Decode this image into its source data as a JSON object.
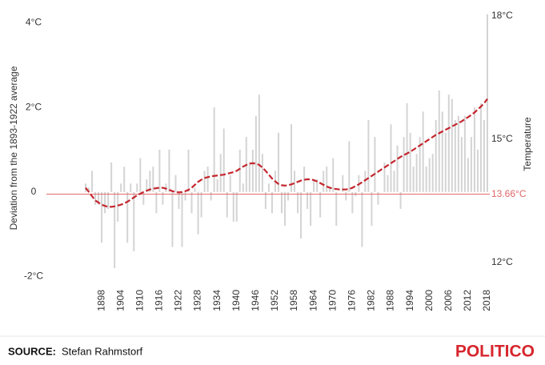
{
  "chart_data": {
    "type": "bar-line",
    "y_label": "Deviation from the 1893-1922 average",
    "y2_label": "Temperature",
    "source_label": "SOURCE:",
    "source": "Stefan Rahmstorf",
    "brand": "POLITICO",
    "x": [
      1893,
      1894,
      1895,
      1896,
      1897,
      1898,
      1899,
      1900,
      1901,
      1902,
      1903,
      1904,
      1905,
      1906,
      1907,
      1908,
      1909,
      1910,
      1911,
      1912,
      1913,
      1914,
      1915,
      1916,
      1917,
      1918,
      1919,
      1920,
      1921,
      1922,
      1923,
      1924,
      1925,
      1926,
      1927,
      1928,
      1929,
      1930,
      1931,
      1932,
      1933,
      1934,
      1935,
      1936,
      1937,
      1938,
      1939,
      1940,
      1941,
      1942,
      1943,
      1944,
      1945,
      1946,
      1947,
      1948,
      1949,
      1950,
      1951,
      1952,
      1953,
      1954,
      1955,
      1956,
      1957,
      1958,
      1959,
      1960,
      1961,
      1962,
      1963,
      1964,
      1965,
      1966,
      1967,
      1968,
      1969,
      1970,
      1971,
      1972,
      1973,
      1974,
      1975,
      1976,
      1977,
      1978,
      1979,
      1980,
      1981,
      1982,
      1983,
      1984,
      1985,
      1986,
      1987,
      1988,
      1989,
      1990,
      1991,
      1992,
      1993,
      1994,
      1995,
      1996,
      1997,
      1998,
      1999,
      2000,
      2001,
      2002,
      2003,
      2004,
      2005,
      2006,
      2007,
      2008,
      2009,
      2010,
      2011,
      2012,
      2013,
      2014,
      2015,
      2016,
      2017,
      2018
    ],
    "series": [
      {
        "kind": "bar",
        "color": "#d4d4d4",
        "values": [
          0.2,
          0.1,
          0.5,
          -0.3,
          -0.3,
          -1.2,
          -0.5,
          -0.4,
          0.7,
          -1.8,
          -0.7,
          0.2,
          0.6,
          -1.2,
          0.2,
          -1.4,
          0.2,
          0.8,
          -0.3,
          0.3,
          0.5,
          0.6,
          -0.5,
          1.0,
          -0.3,
          0.2,
          1.0,
          -1.3,
          0.4,
          -0.4,
          -1.3,
          -0.2,
          1.0,
          -0.5,
          0.1,
          -1.0,
          -0.6,
          0.5,
          0.6,
          -0.2,
          2.0,
          0.3,
          0.9,
          1.5,
          -0.6,
          0.4,
          -0.7,
          -0.7,
          1.0,
          0.2,
          1.3,
          0.7,
          1.0,
          1.8,
          2.3,
          0.9,
          -0.4,
          0.2,
          -0.5,
          0.5,
          1.4,
          -0.5,
          -0.8,
          -0.2,
          1.6,
          0.5,
          -0.5,
          -1.1,
          0.6,
          -0.4,
          -0.8,
          0.3,
          0.3,
          -0.6,
          0.5,
          0.6,
          0.1,
          0.8,
          -0.8,
          0.0,
          0.4,
          -0.2,
          1.2,
          -0.5,
          -0.1,
          0.4,
          -1.3,
          0.5,
          1.7,
          -0.8,
          1.3,
          -0.3,
          0.0,
          0.7,
          0.4,
          1.6,
          0.5,
          1.1,
          -0.4,
          1.3,
          2.1,
          1.4,
          0.6,
          0.9,
          1.3,
          1.9,
          0.6,
          0.8,
          0.9,
          1.7,
          2.4,
          1.9,
          1.4,
          2.3,
          2.2,
          1.7,
          1.8,
          1.3,
          1.8,
          0.8,
          1.3,
          2.0,
          1.0,
          2.1,
          1.7,
          4.2
        ]
      },
      {
        "kind": "line",
        "color": "#c4262e",
        "values": [
          0.1,
          0.0,
          -0.1,
          -0.2,
          -0.25,
          -0.3,
          -0.33,
          -0.35,
          -0.35,
          -0.34,
          -0.32,
          -0.3,
          -0.27,
          -0.23,
          -0.18,
          -0.13,
          -0.08,
          -0.04,
          0.0,
          0.03,
          0.06,
          0.08,
          0.09,
          0.1,
          0.1,
          0.08,
          0.05,
          0.02,
          0.0,
          -0.01,
          0.0,
          0.02,
          0.05,
          0.1,
          0.17,
          0.24,
          0.29,
          0.33,
          0.35,
          0.37,
          0.38,
          0.39,
          0.4,
          0.41,
          0.43,
          0.45,
          0.47,
          0.5,
          0.55,
          0.6,
          0.64,
          0.67,
          0.68,
          0.67,
          0.64,
          0.58,
          0.5,
          0.41,
          0.32,
          0.25,
          0.19,
          0.16,
          0.15,
          0.16,
          0.18,
          0.21,
          0.24,
          0.27,
          0.29,
          0.3,
          0.3,
          0.28,
          0.25,
          0.21,
          0.17,
          0.13,
          0.1,
          0.08,
          0.07,
          0.06,
          0.06,
          0.06,
          0.07,
          0.1,
          0.14,
          0.18,
          0.23,
          0.28,
          0.33,
          0.38,
          0.43,
          0.48,
          0.53,
          0.58,
          0.63,
          0.68,
          0.73,
          0.78,
          0.83,
          0.87,
          0.91,
          0.95,
          1.0,
          1.05,
          1.1,
          1.15,
          1.2,
          1.25,
          1.3,
          1.35,
          1.39,
          1.43,
          1.47,
          1.51,
          1.55,
          1.59,
          1.63,
          1.67,
          1.72,
          1.77,
          1.82,
          1.88,
          1.95,
          2.02,
          2.1,
          2.2
        ]
      }
    ],
    "xlim": [
      1892,
      2019
    ],
    "xticks": [
      1898,
      1904,
      1910,
      1916,
      1922,
      1928,
      1934,
      1940,
      1946,
      1952,
      1958,
      1964,
      1970,
      1976,
      1982,
      1988,
      1994,
      2000,
      2006,
      2012,
      2018
    ],
    "ylim": [
      -2.5,
      4.5
    ],
    "yticks": [
      {
        "value": -2,
        "label": "-2°C"
      },
      0,
      {
        "value": 2,
        "label": "2°C"
      },
      {
        "value": 4,
        "label": "4°C"
      }
    ],
    "y2lim": [
      11.14,
      18.35
    ],
    "y2ticks": [
      {
        "value": 12,
        "label": "12°C"
      },
      {
        "value": 13.66,
        "label": "13.66°C"
      },
      {
        "value": 15,
        "label": "15°C"
      },
      {
        "value": 18,
        "label": "18°C"
      }
    ],
    "baseline": {
      "value": 13.66,
      "color": "#e06666"
    }
  }
}
